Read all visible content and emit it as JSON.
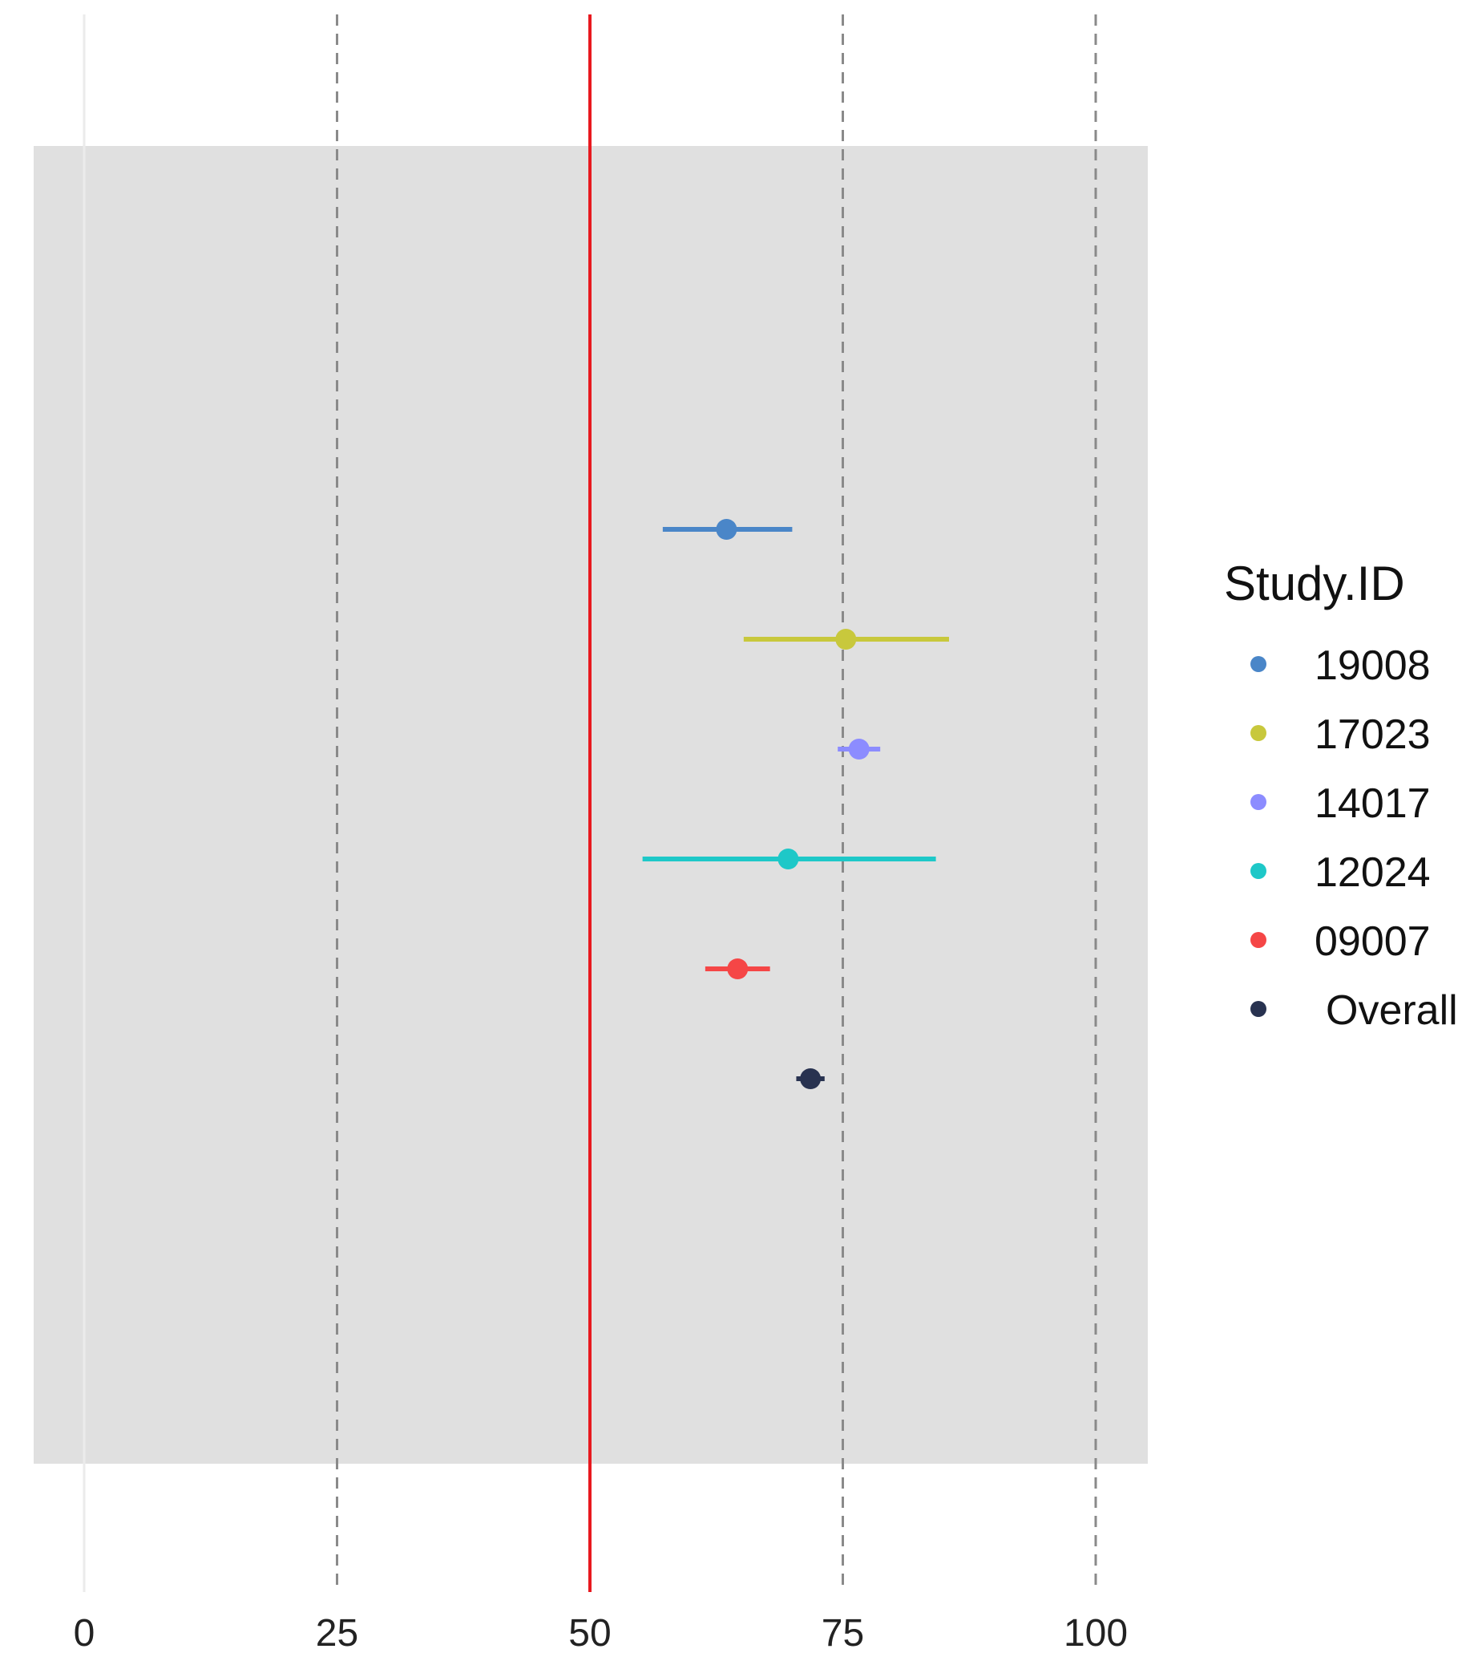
{
  "chart_data": {
    "type": "forest",
    "title": "",
    "xlabel": "",
    "ylabel": "",
    "xlim": [
      0,
      105
    ],
    "x_ticks": [
      0,
      25,
      50,
      75,
      100
    ],
    "x_tick_labels": [
      "0",
      "25",
      "50",
      "75",
      "100"
    ],
    "grid": "vertical dashed gridlines at 25, 50, 75, 100",
    "reference_line": {
      "x": 50,
      "color": "#e8191f"
    },
    "panel_background": "#e0e0e0",
    "legend": {
      "title": "Study.ID",
      "placement": "right"
    },
    "series": [
      {
        "name": "19008",
        "estimate": 63.5,
        "lower": 57.2,
        "upper": 70.0,
        "color": "#4a86c8"
      },
      {
        "name": "17023",
        "estimate": 75.3,
        "lower": 65.2,
        "upper": 85.5,
        "color": "#c8c83c"
      },
      {
        "name": "14017",
        "estimate": 76.6,
        "lower": 74.5,
        "upper": 78.7,
        "color": "#8c8cff"
      },
      {
        "name": "12024",
        "estimate": 69.6,
        "lower": 55.2,
        "upper": 84.2,
        "color": "#1ec8c8"
      },
      {
        "name": "09007",
        "estimate": 64.6,
        "lower": 61.4,
        "upper": 67.8,
        "color": "#f54646"
      },
      {
        "name": "Overall",
        "estimate": 71.8,
        "lower": 70.4,
        "upper": 73.2,
        "color": "#283250"
      }
    ]
  }
}
